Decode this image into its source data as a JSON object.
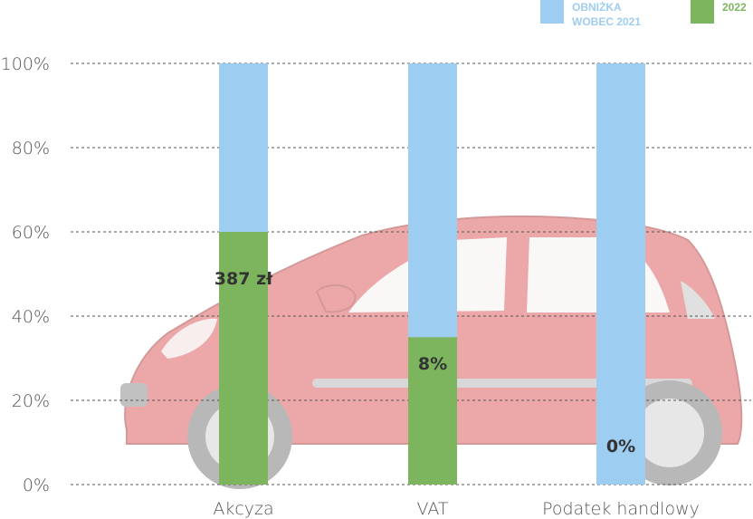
{
  "chart_data": {
    "type": "bar",
    "stacked": true,
    "categories": [
      "Akcyza",
      "VAT",
      "Podatek handlowy"
    ],
    "series": [
      {
        "name": "2022",
        "color": "#7cb55e",
        "values": [
          60,
          35,
          0
        ]
      },
      {
        "name": "OBNIŻKA WOBEC 2021",
        "color": "#9dcdf0",
        "values": [
          40,
          65,
          100
        ]
      }
    ],
    "data_labels": [
      "387 zł",
      "8%",
      "0%"
    ],
    "yticks": [
      "0%",
      "20%",
      "40%",
      "60%",
      "80%",
      "100%"
    ],
    "ytick_values": [
      0,
      20,
      40,
      60,
      80,
      100
    ],
    "ylim": [
      0,
      100
    ],
    "grid": "horizontal dashed",
    "legend_position": "top-right",
    "background_image": "red-car-illustration"
  }
}
